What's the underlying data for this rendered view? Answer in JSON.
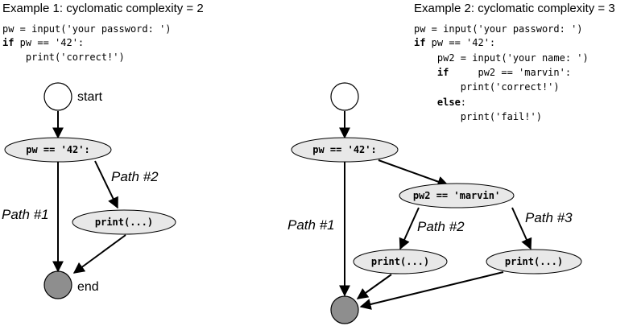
{
  "example1": {
    "title": "Example 1: cyclomatic complexity = 2",
    "code": [
      {
        "text": "pw = input('your password: ')",
        "keyword": ""
      },
      {
        "text": " pw == '42':",
        "keyword": "if"
      },
      {
        "text": "    print('correct!')",
        "keyword": ""
      }
    ],
    "nodes": {
      "start": "start",
      "cond": "pw == '42':",
      "print": "print(...)",
      "end": "end"
    },
    "paths": {
      "path1": "Path #1",
      "path2": "Path #2"
    }
  },
  "example2": {
    "title": "Example 2: cyclomatic complexity = 3",
    "code": [
      {
        "text": "pw = input('your password: ')",
        "keyword": ""
      },
      {
        "text": " pw == '42':",
        "keyword": "if"
      },
      {
        "text": "    pw2 = input('your name: ')",
        "keyword": ""
      },
      {
        "text": "     pw2 == 'marvin':",
        "keyword": "    if"
      },
      {
        "text": "        print('correct!')",
        "keyword": ""
      },
      {
        "text": ":",
        "keyword": "    else"
      },
      {
        "text": "        print('fail!')",
        "keyword": ""
      }
    ],
    "nodes": {
      "cond1": "pw == '42':",
      "cond2": "pw2 == 'marvin'",
      "print_a": "print(...)",
      "print_b": "print(...)"
    },
    "paths": {
      "path1": "Path #1",
      "path2": "Path #2",
      "path3": "Path #3"
    }
  },
  "colors": {
    "node_fill": "#e8e8e8",
    "end_fill": "#8e8e8e",
    "start_fill": "#ffffff"
  }
}
